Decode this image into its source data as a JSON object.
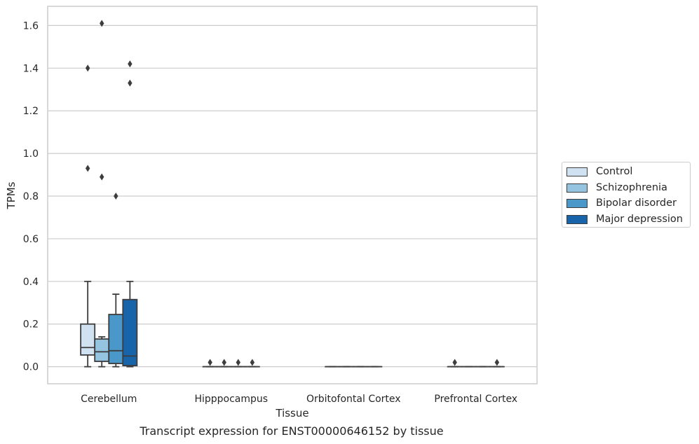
{
  "caption": "Transcript expression for ENST00000646152 by tissue",
  "chart_data": {
    "type": "box",
    "xlabel": "Tissue",
    "ylabel": "TPMs",
    "ylim": [
      -0.08,
      1.69
    ],
    "yticks": [
      "0.0",
      "0.2",
      "0.4",
      "0.6",
      "0.8",
      "1.0",
      "1.2",
      "1.4",
      "1.6"
    ],
    "grid": true,
    "legend_position": "right",
    "categories": [
      "Cerebellum",
      "Hipppocampus",
      "Orbitofontal Cortex",
      "Prefrontal Cortex"
    ],
    "series": [
      {
        "name": "Control",
        "color": "#d0e1f2",
        "boxes": [
          {
            "q1": 0.055,
            "median": 0.09,
            "q3": 0.2,
            "whisker_low": 0.0,
            "whisker_high": 0.4,
            "outliers": [
              0.93,
              1.4
            ]
          },
          {
            "q1": 0.0,
            "median": 0.0,
            "q3": 0.0,
            "whisker_low": 0.0,
            "whisker_high": 0.0,
            "outliers": [
              0.02
            ]
          },
          {
            "q1": 0.0,
            "median": 0.0,
            "q3": 0.0,
            "whisker_low": 0.0,
            "whisker_high": 0.0,
            "outliers": []
          },
          {
            "q1": 0.0,
            "median": 0.0,
            "q3": 0.0,
            "whisker_low": 0.0,
            "whisker_high": 0.0,
            "outliers": [
              0.02
            ]
          }
        ]
      },
      {
        "name": "Schizophrenia",
        "color": "#94c4df",
        "boxes": [
          {
            "q1": 0.025,
            "median": 0.07,
            "q3": 0.13,
            "whisker_low": 0.0,
            "whisker_high": 0.14,
            "outliers": [
              0.89,
              1.61
            ]
          },
          {
            "q1": 0.0,
            "median": 0.0,
            "q3": 0.0,
            "whisker_low": 0.0,
            "whisker_high": 0.0,
            "outliers": [
              0.02
            ]
          },
          {
            "q1": 0.0,
            "median": 0.0,
            "q3": 0.0,
            "whisker_low": 0.0,
            "whisker_high": 0.0,
            "outliers": []
          },
          {
            "q1": 0.0,
            "median": 0.0,
            "q3": 0.0,
            "whisker_low": 0.0,
            "whisker_high": 0.0,
            "outliers": []
          }
        ]
      },
      {
        "name": "Bipolar disorder",
        "color": "#4a98c9",
        "boxes": [
          {
            "q1": 0.015,
            "median": 0.075,
            "q3": 0.245,
            "whisker_low": 0.0,
            "whisker_high": 0.34,
            "outliers": [
              0.8
            ]
          },
          {
            "q1": 0.0,
            "median": 0.0,
            "q3": 0.0,
            "whisker_low": 0.0,
            "whisker_high": 0.0,
            "outliers": [
              0.02
            ]
          },
          {
            "q1": 0.0,
            "median": 0.0,
            "q3": 0.0,
            "whisker_low": 0.0,
            "whisker_high": 0.0,
            "outliers": []
          },
          {
            "q1": 0.0,
            "median": 0.0,
            "q3": 0.0,
            "whisker_low": 0.0,
            "whisker_high": 0.0,
            "outliers": []
          }
        ]
      },
      {
        "name": "Major depression",
        "color": "#1764ab",
        "boxes": [
          {
            "q1": 0.005,
            "median": 0.05,
            "q3": 0.315,
            "whisker_low": 0.0,
            "whisker_high": 0.4,
            "outliers": [
              1.33,
              1.42
            ]
          },
          {
            "q1": 0.0,
            "median": 0.0,
            "q3": 0.0,
            "whisker_low": 0.0,
            "whisker_high": 0.0,
            "outliers": [
              0.02
            ]
          },
          {
            "q1": 0.0,
            "median": 0.0,
            "q3": 0.0,
            "whisker_low": 0.0,
            "whisker_high": 0.0,
            "outliers": []
          },
          {
            "q1": 0.0,
            "median": 0.0,
            "q3": 0.0,
            "whisker_low": 0.0,
            "whisker_high": 0.0,
            "outliers": [
              0.02
            ]
          }
        ]
      }
    ]
  }
}
